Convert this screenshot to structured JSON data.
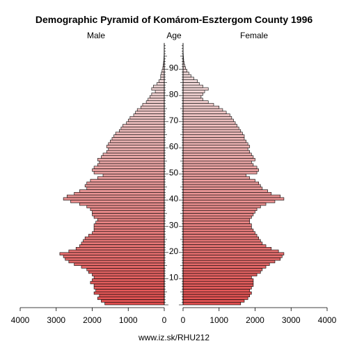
{
  "chart_data": {
    "type": "bar",
    "title": "Demographic Pyramid of Komárom-Esztergom County 1996",
    "left_label": "Male",
    "center_label": "Age",
    "right_label": "Female",
    "footer": "www.iz.sk/RHU212",
    "x_ticks_left": [
      "4000",
      "3000",
      "2000",
      "1000",
      "0"
    ],
    "x_ticks_right": [
      "0",
      "1000",
      "2000",
      "3000",
      "4000"
    ],
    "age_ticks": [
      "10",
      "20",
      "30",
      "40",
      "50",
      "60",
      "70",
      "80",
      "90"
    ],
    "xlim": [
      0,
      4000
    ],
    "ages": [
      0,
      1,
      2,
      3,
      4,
      5,
      6,
      7,
      8,
      9,
      10,
      11,
      12,
      13,
      14,
      15,
      16,
      17,
      18,
      19,
      20,
      21,
      22,
      23,
      24,
      25,
      26,
      27,
      28,
      29,
      30,
      31,
      32,
      33,
      34,
      35,
      36,
      37,
      38,
      39,
      40,
      41,
      42,
      43,
      44,
      45,
      46,
      47,
      48,
      49,
      50,
      51,
      52,
      53,
      54,
      55,
      56,
      57,
      58,
      59,
      60,
      61,
      62,
      63,
      64,
      65,
      66,
      67,
      68,
      69,
      70,
      71,
      72,
      73,
      74,
      75,
      76,
      77,
      78,
      79,
      80,
      81,
      82,
      83,
      84,
      85,
      86,
      87,
      88,
      89,
      90,
      91,
      92,
      93,
      94,
      95,
      96,
      97,
      98,
      99
    ],
    "male": [
      1650,
      1750,
      1850,
      1800,
      1950,
      1900,
      1950,
      1950,
      2050,
      2000,
      1950,
      2000,
      2100,
      2150,
      2300,
      2500,
      2650,
      2750,
      2800,
      2900,
      2650,
      2450,
      2350,
      2300,
      2250,
      2200,
      2100,
      2000,
      1950,
      1950,
      1950,
      1900,
      1850,
      1950,
      2000,
      2000,
      2050,
      2150,
      2350,
      2600,
      2800,
      2700,
      2500,
      2350,
      2150,
      2200,
      2150,
      2050,
      1850,
      1700,
      1950,
      2000,
      1950,
      1850,
      1800,
      1850,
      1750,
      1700,
      1600,
      1550,
      1600,
      1550,
      1500,
      1450,
      1400,
      1350,
      1250,
      1200,
      1150,
      1050,
      1000,
      950,
      850,
      800,
      750,
      650,
      600,
      500,
      450,
      400,
      350,
      250,
      350,
      300,
      200,
      150,
      100,
      100,
      80,
      60,
      40,
      30,
      20,
      10,
      8,
      5,
      3,
      2,
      1,
      1
    ],
    "female": [
      1600,
      1700,
      1800,
      1850,
      1900,
      1850,
      1900,
      1950,
      1950,
      1950,
      1900,
      2050,
      2150,
      2200,
      2300,
      2400,
      2550,
      2700,
      2750,
      2800,
      2650,
      2450,
      2300,
      2200,
      2150,
      2100,
      2050,
      2000,
      1950,
      1900,
      1900,
      1850,
      1850,
      1900,
      1950,
      2000,
      2050,
      2150,
      2300,
      2550,
      2800,
      2700,
      2450,
      2350,
      2200,
      2150,
      2100,
      2000,
      1850,
      1750,
      2050,
      2100,
      2050,
      1950,
      1900,
      2000,
      1950,
      1900,
      1850,
      1800,
      1850,
      1800,
      1750,
      1700,
      1700,
      1650,
      1600,
      1550,
      1500,
      1450,
      1400,
      1350,
      1300,
      1200,
      1100,
      1000,
      850,
      700,
      550,
      500,
      550,
      600,
      700,
      550,
      450,
      400,
      300,
      220,
      160,
      110,
      70,
      45,
      30,
      18,
      12,
      7,
      4,
      2,
      1,
      1
    ],
    "male_excess": [
      0,
      0,
      0,
      0,
      0,
      0,
      0,
      0,
      0,
      0,
      0,
      0,
      0,
      0,
      0,
      0,
      0,
      0,
      0,
      0,
      0,
      0,
      0,
      0,
      0,
      0,
      0,
      0,
      0,
      0,
      0,
      0,
      0,
      0,
      0,
      0,
      0,
      0,
      0,
      0,
      0,
      0,
      0,
      0,
      0,
      0,
      0,
      0,
      0,
      0,
      0,
      0,
      0,
      0,
      0,
      0,
      0,
      0,
      0,
      0,
      0,
      0,
      0,
      0,
      0,
      0,
      0,
      0,
      0,
      0,
      0,
      0,
      0,
      0,
      0,
      0,
      0,
      0,
      0,
      0,
      0,
      0,
      0,
      0,
      0,
      0,
      0,
      0,
      0,
      0,
      0,
      0,
      0,
      0,
      0,
      0,
      0,
      0,
      0,
      0
    ],
    "female_excess": [
      0,
      0,
      0,
      0,
      0,
      0,
      0,
      0,
      0,
      0,
      0,
      0,
      0,
      0,
      0,
      0,
      0,
      0,
      0,
      0,
      0,
      0,
      0,
      0,
      0,
      0,
      0,
      0,
      0,
      0,
      0,
      0,
      0,
      0,
      0,
      0,
      0,
      0,
      0,
      0,
      0,
      0,
      0,
      0,
      0,
      0,
      0,
      0,
      0,
      0,
      0,
      0,
      0,
      0,
      0,
      0,
      0,
      0,
      0,
      0,
      0,
      0,
      0,
      0,
      0,
      0,
      0,
      0,
      0,
      0,
      0,
      0,
      0,
      0,
      0,
      0,
      0,
      0,
      0,
      0,
      0,
      0,
      0,
      0,
      0,
      0,
      0,
      0,
      0,
      0,
      0,
      0,
      0,
      0,
      0,
      0,
      0,
      0,
      0,
      0
    ],
    "colors": {
      "young": "#e05050",
      "old": "#f0d8d8",
      "excess": "#000000",
      "outline": "#000000"
    },
    "grid": false
  }
}
